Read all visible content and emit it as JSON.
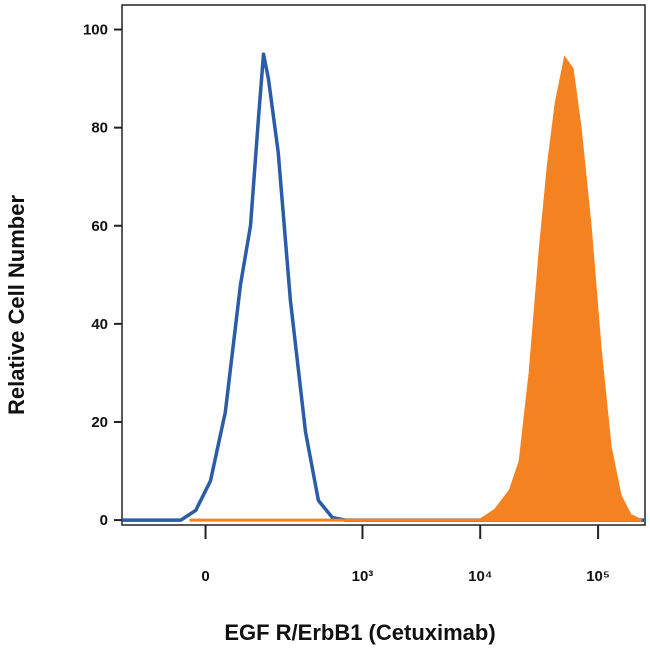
{
  "chart_data": {
    "type": "histogram-overlay",
    "xlabel": "EGF R/ErbB1 (Cetuximab)",
    "ylabel": "Relative Cell Number",
    "xscale": "asinh",
    "xlim": [
      -230,
      250000
    ],
    "xticks": [
      0,
      {
        "value": 1000,
        "label": "10³"
      },
      {
        "value": 10000,
        "label": "10⁴"
      },
      {
        "value": 100000,
        "label": "10⁵"
      }
    ],
    "ylim": [
      -1,
      105
    ],
    "yticks": [
      0,
      20,
      40,
      60,
      80,
      100
    ],
    "series": [
      {
        "color": "#2a5ca8",
        "fill": false,
        "x": [
          -230,
          -47,
          -18,
          9,
          37,
          69,
          93,
          115,
          130,
          146,
          182,
          236,
          323,
          419,
          553,
          716,
          250000
        ],
        "values": [
          0,
          0,
          2,
          8,
          22,
          48,
          60,
          82,
          95,
          90,
          75,
          45,
          18,
          4,
          0.5,
          0,
          0
        ]
      },
      {
        "color": "#f58220",
        "fill": true,
        "x": [
          -27,
          10000,
          13410,
          17970,
          21830,
          26520,
          32250,
          37700,
          44080,
          52500,
          60200,
          70400,
          85560,
          104000,
          126400,
          153800,
          186800,
          227000
        ],
        "values": [
          0,
          0,
          2,
          6,
          12,
          30,
          55,
          72,
          85,
          94,
          92,
          80,
          60,
          35,
          15,
          5,
          1,
          0
        ]
      }
    ]
  }
}
